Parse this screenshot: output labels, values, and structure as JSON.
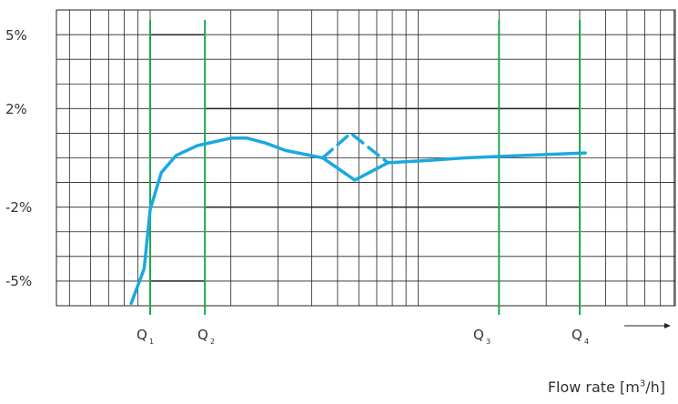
{
  "chart_data": {
    "type": "line",
    "title": "",
    "xlabel_prefix": "Flow rate [m",
    "xlabel_sup": "3",
    "xlabel_suffix": "/h]",
    "y_tick_labels": [
      "5%",
      "2%",
      "-2%",
      "-5%"
    ],
    "x_markers": [
      {
        "label": "Q",
        "sub": "1"
      },
      {
        "label": "Q",
        "sub": "2"
      },
      {
        "label": "Q",
        "sub": "3"
      },
      {
        "label": "Q",
        "sub": "4"
      }
    ],
    "limits": [
      {
        "from": "Q1",
        "to": "Q2",
        "upper": 5,
        "lower": -5
      },
      {
        "from": "Q2",
        "to": "Q4",
        "upper": 2,
        "lower": -2
      }
    ],
    "series": [
      {
        "style": "solid",
        "points": [
          [
            0.85,
            -5.9
          ],
          [
            0.95,
            -4.5
          ],
          [
            1.0,
            -2.1
          ],
          [
            1.1,
            -0.6
          ],
          [
            1.25,
            0.1
          ],
          [
            1.5,
            0.5
          ],
          [
            2.0,
            0.8
          ],
          [
            2.3,
            0.8
          ],
          [
            2.7,
            0.6
          ],
          [
            3.2,
            0.3
          ],
          [
            4.4,
            0.0
          ],
          [
            5.8,
            -0.9
          ],
          [
            7.7,
            -0.2
          ],
          [
            11.0,
            -0.1
          ],
          [
            15.0,
            0.0
          ],
          [
            25.0,
            0.1
          ],
          [
            42.0,
            0.2
          ]
        ]
      },
      {
        "style": "dashed",
        "points": [
          [
            4.4,
            0.0
          ],
          [
            5.6,
            1.0
          ],
          [
            7.7,
            -0.2
          ]
        ]
      }
    ]
  },
  "colors": {
    "curve": "#1aa9e0",
    "marker_line": "#1daa4a",
    "grid": "#222222"
  }
}
